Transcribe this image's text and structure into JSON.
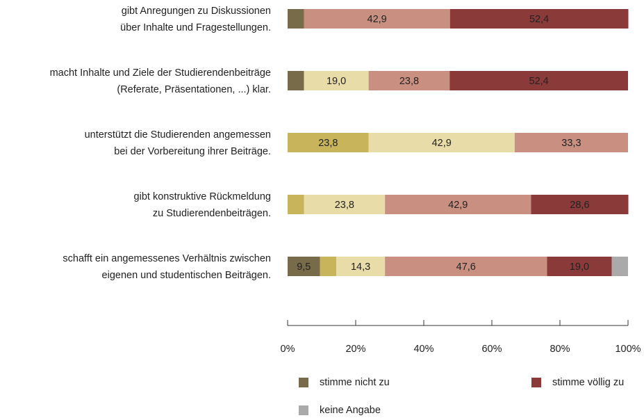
{
  "chart_data": {
    "type": "stacked-bar-horizontal",
    "categories": [
      [
        "gibt Anregungen zu Diskussionen",
        "über Inhalte und Fragestellungen."
      ],
      [
        "macht Inhalte und Ziele der Studierendenbeiträge",
        "(Referate, Präsentationen, ...) klar."
      ],
      [
        "unterstützt die Studierenden angemessen",
        "bei der Vorbereitung ihrer Beiträge."
      ],
      [
        "gibt konstruktive Rückmeldung",
        "zu Studierendenbeiträgen."
      ],
      [
        "schafft ein angemessenes Verhältnis zwischen",
        "eigenen und studentischen Beiträgen."
      ]
    ],
    "series": [
      {
        "name": "stimme nicht zu",
        "color": "#776b4a",
        "values": [
          4.8,
          4.8,
          null,
          null,
          9.5
        ],
        "value_labels": [
          null,
          null,
          null,
          null,
          "9,5"
        ]
      },
      {
        "color": "#c8b45a",
        "values": [
          null,
          null,
          23.8,
          4.8,
          4.8
        ],
        "value_labels": [
          null,
          null,
          "23,8",
          null,
          null
        ]
      },
      {
        "color": "#e8dca8",
        "values": [
          null,
          19.0,
          42.9,
          23.8,
          14.3
        ],
        "value_labels": [
          null,
          "19,0",
          "42,9",
          "23,8",
          "14,3"
        ]
      },
      {
        "color": "#c98f80",
        "values": [
          42.9,
          23.8,
          33.3,
          42.9,
          47.6
        ],
        "value_labels": [
          "42,9",
          "23,8",
          "33,3",
          "42,9",
          "47,6"
        ]
      },
      {
        "name": "stimme völlig zu",
        "color": "#8b3a3a",
        "values": [
          52.4,
          52.4,
          null,
          28.6,
          19.0
        ],
        "value_labels": [
          "52,4",
          "52,4",
          null,
          "28,6",
          "19,0"
        ]
      },
      {
        "name": "keine Angabe",
        "color": "#aaaaaa",
        "values": [
          null,
          null,
          null,
          null,
          4.8
        ],
        "value_labels": [
          null,
          null,
          null,
          null,
          null
        ]
      }
    ],
    "xlim": [
      0,
      100
    ],
    "xticks": [
      {
        "value": 0,
        "label": "0%"
      },
      {
        "value": 20,
        "label": "20%"
      },
      {
        "value": 40,
        "label": "40%"
      },
      {
        "value": 60,
        "label": "60%"
      },
      {
        "value": 80,
        "label": "80%"
      },
      {
        "value": 100,
        "label": "100%"
      }
    ]
  }
}
